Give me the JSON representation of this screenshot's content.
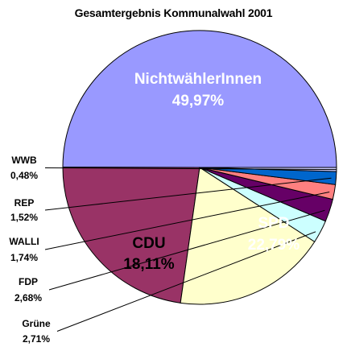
{
  "chart_data": {
    "type": "pie",
    "title": "Gesamtergebnis Kommunalwahl 2001",
    "slices": [
      {
        "label": "NichtwählerInnen",
        "value_label": "49,97%",
        "value": 49.97,
        "color": "#9999ff"
      },
      {
        "label": "SPD",
        "value_label": "22,79%",
        "value": 22.79,
        "color": "#993366"
      },
      {
        "label": "CDU",
        "value_label": "18,11%",
        "value": 18.11,
        "color": "#ffffcc"
      },
      {
        "label": "Grüne",
        "value_label": "2,71%",
        "value": 2.71,
        "color": "#ccffff"
      },
      {
        "label": "FDP",
        "value_label": "2,68%",
        "value": 2.68,
        "color": "#660066"
      },
      {
        "label": "WALLI",
        "value_label": "1,74%",
        "value": 1.74,
        "color": "#ff8080"
      },
      {
        "label": "REP",
        "value_label": "1,52%",
        "value": 1.52,
        "color": "#0066cc"
      },
      {
        "label": "WWB",
        "value_label": "0,48%",
        "value": 0.48,
        "color": "#ccccff"
      }
    ]
  }
}
